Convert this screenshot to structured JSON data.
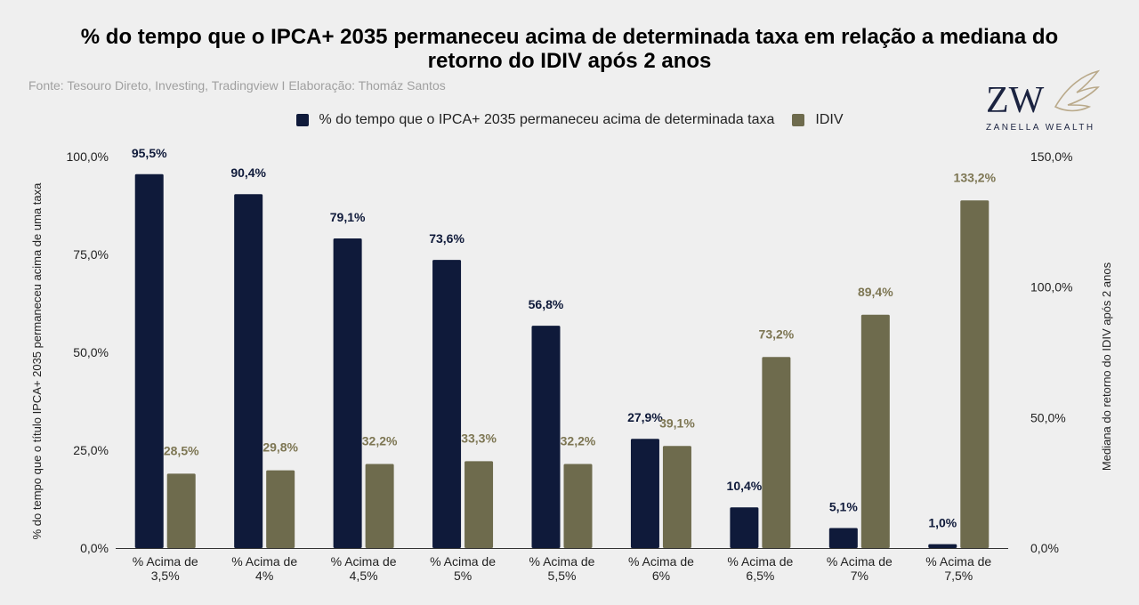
{
  "title_line1": "% do tempo que o IPCA+ 2035 permaneceu acima de determinada taxa em relação a mediana do",
  "title_line2": "retorno do IDIV após 2 anos",
  "subtitle": "Fonte: Tesouro Direto, Investing, Tradingview I Elaboração: Thomáz Santos",
  "logo": {
    "mark": "ZW",
    "text": "ZANELLA WEALTH"
  },
  "colors": {
    "series1": "#0f1a3a",
    "series2": "#6e6b4d",
    "label1": "#0f1a3a",
    "label2": "#7d7653"
  },
  "chart_data": {
    "type": "bar",
    "categories": [
      [
        "% Acima de",
        "3,5%"
      ],
      [
        "% Acima de",
        "4%"
      ],
      [
        "% Acima de",
        "4,5%"
      ],
      [
        "% Acima de",
        "5%"
      ],
      [
        "% Acima de",
        "5,5%"
      ],
      [
        "% Acima de",
        "6%"
      ],
      [
        "% Acima de",
        "6,5%"
      ],
      [
        "% Acima de",
        "7%"
      ],
      [
        "% Acima de",
        "7,5%"
      ]
    ],
    "series": [
      {
        "name": "% do tempo que o IPCA+ 2035 permaneceu acima de determinada taxa",
        "axis": "left",
        "values": [
          95.5,
          90.4,
          79.1,
          73.6,
          56.8,
          27.9,
          10.4,
          5.1,
          1.0
        ],
        "labels": [
          "95,5%",
          "90,4%",
          "79,1%",
          "73,6%",
          "56,8%",
          "27,9%",
          "10,4%",
          "5,1%",
          "1,0%"
        ]
      },
      {
        "name": "IDIV",
        "axis": "right",
        "values": [
          28.5,
          29.8,
          32.2,
          33.3,
          32.2,
          39.1,
          73.2,
          89.4,
          133.2
        ],
        "labels": [
          "28,5%",
          "29,8%",
          "32,2%",
          "33,3%",
          "32,2%",
          "39,1%",
          "73,2%",
          "89,4%",
          "133,2%"
        ]
      }
    ],
    "ylabel_left": "% do tempo que o título IPCA+ 2035 permaneceu acima de uma taxa",
    "ylabel_right": "Mediana do retorno do IDIV após 2 anos",
    "ylim_left": [
      0,
      100
    ],
    "ylim_right": [
      0,
      150
    ],
    "yticks_left": [
      "0,0%",
      "25,0%",
      "50,0%",
      "75,0%",
      "100,0%"
    ],
    "yticks_right": [
      "0,0%",
      "50,0%",
      "100,0%",
      "150,0%"
    ],
    "yticks_left_values": [
      0,
      25,
      50,
      75,
      100
    ],
    "yticks_right_values": [
      0,
      50,
      100,
      150
    ],
    "grid": false,
    "legend_position": "top"
  }
}
